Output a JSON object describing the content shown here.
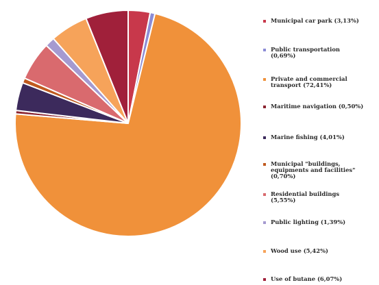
{
  "chart_data": {
    "type": "pie",
    "start_angle_deg": 0,
    "direction": "clockwise",
    "slices": [
      {
        "label": "Municipal car park (3,13%)",
        "value": 3.13,
        "color": "#c8384b"
      },
      {
        "label": "Public transportation (0,69%)",
        "value": 0.69,
        "color": "#8c8cd6"
      },
      {
        "label": "Private and commercial transport (72,41%)",
        "value": 72.41,
        "color": "#f0913a"
      },
      {
        "label": "Maritime navigation (0,50%)",
        "value": 0.5,
        "color": "#8b2430"
      },
      {
        "label": "Marine fishing (4,01%)",
        "value": 4.01,
        "color": "#3c2a5c"
      },
      {
        "label": "Municipal \"buildings, equipments and facilities\" (0,70%)",
        "value": 0.7,
        "color": "#c05a1f"
      },
      {
        "label": "Residential buildings (5,55%)",
        "value": 5.55,
        "color": "#d96a6e"
      },
      {
        "label": "Public lighting (1,39%)",
        "value": 1.39,
        "color": "#a59ad0"
      },
      {
        "label": "Wood use (5,42%)",
        "value": 5.42,
        "color": "#f6a35a"
      },
      {
        "label": "Use of butane (6,07%)",
        "value": 6.07,
        "color": "#a0203a"
      }
    ],
    "legend_placement": "right",
    "legend_lines": [
      [
        "Municipal car park (3,13%)"
      ],
      [
        "Public transportation",
        "(0,69%)"
      ],
      [
        "Private and commercial",
        "transport (72,41%)"
      ],
      [
        "Maritime navigation (0,50%)"
      ],
      [
        "Marine fishing (4,01%)"
      ],
      [
        "Municipal \"buildings,",
        "equipments and facilities\"",
        "(0,70%)"
      ],
      [
        "Residential buildings",
        "(5,55%)"
      ],
      [
        "Public lighting (1,39%)"
      ],
      [
        "Wood use (5,42%)"
      ],
      [
        "Use of butane (6,07%)"
      ]
    ]
  }
}
